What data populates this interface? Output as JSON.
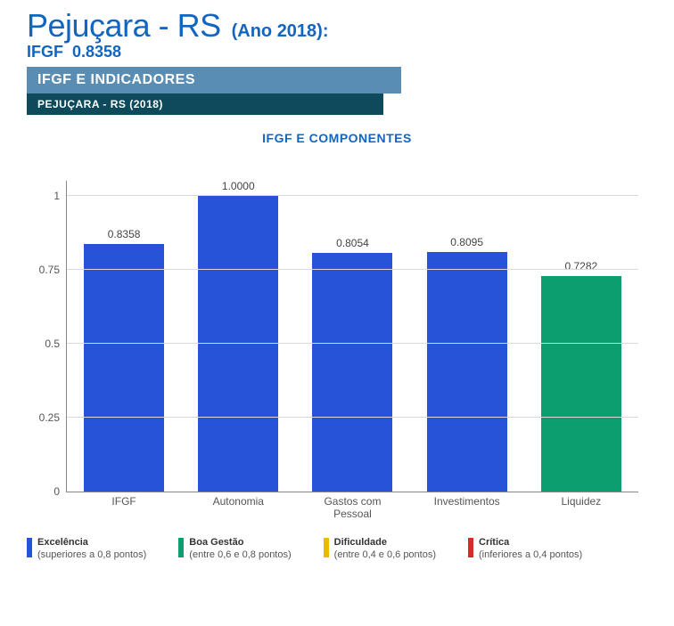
{
  "header": {
    "city": "Pejuçara - RS",
    "year_label": "(Ano 2018):",
    "score_prefix": "IFGF",
    "score_value": "0.8358"
  },
  "banners": {
    "b1": "IFGF E INDICADORES",
    "b2": "PEJUÇARA - RS (2018)"
  },
  "chart": {
    "title": "IFGF E COMPONENTES",
    "type": "bar",
    "ylim": [
      0,
      1.05
    ],
    "yticks": [
      {
        "v": 0,
        "label": "0"
      },
      {
        "v": 0.25,
        "label": "0.25"
      },
      {
        "v": 0.5,
        "label": "0.5"
      },
      {
        "v": 0.75,
        "label": "0.75"
      },
      {
        "v": 1,
        "label": "1"
      }
    ],
    "grid_color": "#d9d9d9",
    "axis_color": "#888888",
    "background_color": "#ffffff",
    "bar_width_pct": 78,
    "value_fontsize": 12,
    "tick_fontsize": 12,
    "bars": [
      {
        "label": "IFGF",
        "value": 0.8358,
        "value_label": "0.8358",
        "color": "#2753d8"
      },
      {
        "label": "Autonomia",
        "value": 1.0,
        "value_label": "1.0000",
        "color": "#2753d8"
      },
      {
        "label": "Gastos com\nPessoal",
        "value": 0.8054,
        "value_label": "0.8054",
        "color": "#2753d8"
      },
      {
        "label": "Investimentos",
        "value": 0.8095,
        "value_label": "0.8095",
        "color": "#2753d8"
      },
      {
        "label": "Liquidez",
        "value": 0.7282,
        "value_label": "0.7282",
        "color": "#0d9e6f"
      }
    ]
  },
  "legend": {
    "items": [
      {
        "color": "#2753d8",
        "title": "Excelência",
        "sub": "(superiores a 0,8 pontos)"
      },
      {
        "color": "#0d9e6f",
        "title": "Boa Gestão",
        "sub": "(entre 0,6 e 0,8 pontos)"
      },
      {
        "color": "#f2b705",
        "title": "Dificuldade",
        "sub": "(entre 0,4 e 0,6 pontos)"
      },
      {
        "color": "#d62b2b",
        "title": "Crítica",
        "sub": "(inferiores a 0,4 pontos)"
      }
    ]
  }
}
